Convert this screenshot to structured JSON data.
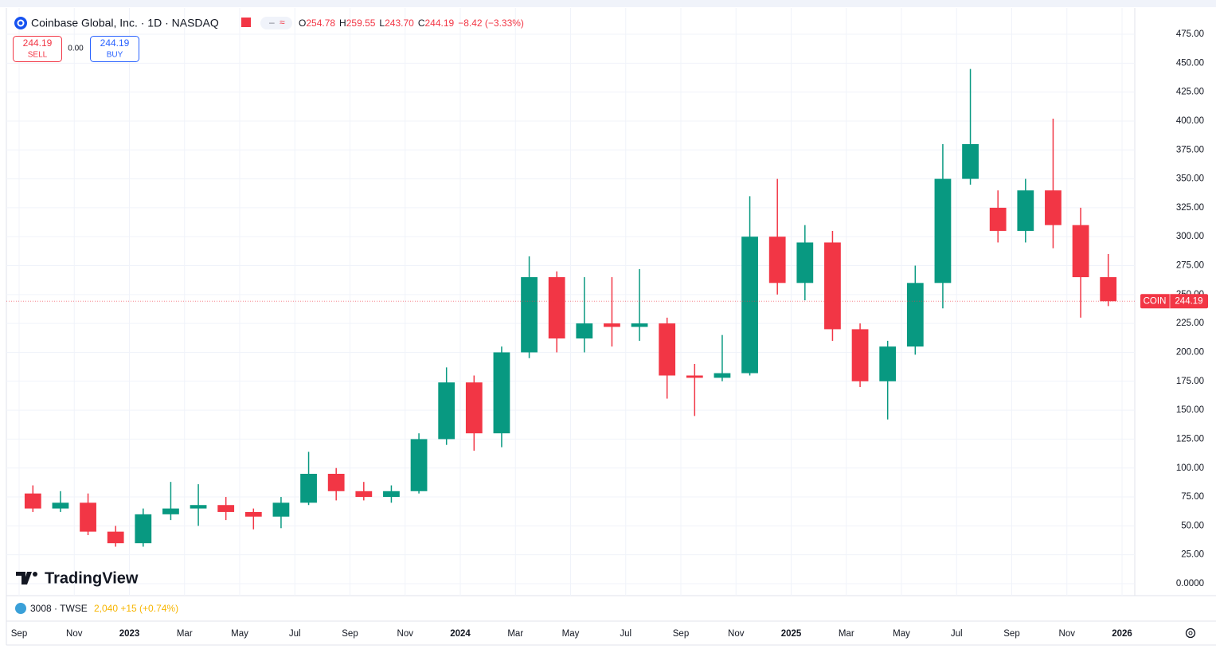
{
  "header": {
    "symbol_name": "Coinbase Global, Inc. · 1D · NASDAQ",
    "ohlc": [
      {
        "key": "O",
        "value": "254.78"
      },
      {
        "key": "H",
        "value": "259.55"
      },
      {
        "key": "L",
        "value": "243.70"
      },
      {
        "key": "C",
        "value": "244.19"
      }
    ],
    "change": "−8.42 (−3.33%)"
  },
  "trade": {
    "sell_price": "244.19",
    "sell_label": "SELL",
    "spread": "0.00",
    "buy_price": "244.19",
    "buy_label": "BUY"
  },
  "watermark": "TradingView",
  "compare": {
    "symbol": "3008 · TWSE",
    "quote": "2,040 +15 (+0.74%)"
  },
  "chart_data": {
    "type": "candlestick",
    "up_color": "#089981",
    "down_color": "#f23645",
    "grid": true,
    "price_tag": {
      "label": "COIN",
      "value": 244.19
    },
    "ylim": [
      0,
      475
    ],
    "yticks": [
      {
        "value": 0,
        "label": "0.0000"
      },
      {
        "value": 25,
        "label": "25.00"
      },
      {
        "value": 50,
        "label": "50.00"
      },
      {
        "value": 75,
        "label": "75.00"
      },
      {
        "value": 100,
        "label": "100.00"
      },
      {
        "value": 125,
        "label": "125.00"
      },
      {
        "value": 150,
        "label": "150.00"
      },
      {
        "value": 175,
        "label": "175.00"
      },
      {
        "value": 200,
        "label": "200.00"
      },
      {
        "value": 225,
        "label": "225.00"
      },
      {
        "value": 250,
        "label": "250.00"
      },
      {
        "value": 275,
        "label": "275.00"
      },
      {
        "value": 300,
        "label": "300.00"
      },
      {
        "value": 325,
        "label": "325.00"
      },
      {
        "value": 350,
        "label": "350.00"
      },
      {
        "value": 375,
        "label": "375.00"
      },
      {
        "value": 400,
        "label": "400.00"
      },
      {
        "value": 425,
        "label": "425.00"
      },
      {
        "value": 450,
        "label": "450.00"
      },
      {
        "value": 475,
        "label": "475.00"
      }
    ],
    "xlim": [
      "2022-09",
      "2026-01"
    ],
    "xticks": [
      {
        "value": "2022-09",
        "label": "Sep"
      },
      {
        "value": "2022-11",
        "label": "Nov"
      },
      {
        "value": "2023-01",
        "label": "2023"
      },
      {
        "value": "2023-03",
        "label": "Mar"
      },
      {
        "value": "2023-05",
        "label": "May"
      },
      {
        "value": "2023-07",
        "label": "Jul"
      },
      {
        "value": "2023-09",
        "label": "Sep"
      },
      {
        "value": "2023-11",
        "label": "Nov"
      },
      {
        "value": "2024-01",
        "label": "2024"
      },
      {
        "value": "2024-03",
        "label": "Mar"
      },
      {
        "value": "2024-05",
        "label": "May"
      },
      {
        "value": "2024-07",
        "label": "Jul"
      },
      {
        "value": "2024-09",
        "label": "Sep"
      },
      {
        "value": "2024-11",
        "label": "Nov"
      },
      {
        "value": "2025-01",
        "label": "2025"
      },
      {
        "value": "2025-03",
        "label": "Mar"
      },
      {
        "value": "2025-05",
        "label": "May"
      },
      {
        "value": "2025-07",
        "label": "Jul"
      },
      {
        "value": "2025-09",
        "label": "Sep"
      },
      {
        "value": "2025-11",
        "label": "Nov"
      },
      {
        "value": "2026-01",
        "label": "2026"
      }
    ],
    "candles": [
      {
        "x": "2022-09",
        "open": 78,
        "high": 85,
        "low": 62,
        "close": 65
      },
      {
        "x": "2022-10",
        "open": 65,
        "high": 80,
        "low": 62,
        "close": 70
      },
      {
        "x": "2022-11",
        "open": 70,
        "high": 78,
        "low": 42,
        "close": 45
      },
      {
        "x": "2022-12",
        "open": 45,
        "high": 50,
        "low": 32,
        "close": 35
      },
      {
        "x": "2023-01",
        "open": 35,
        "high": 65,
        "low": 32,
        "close": 60
      },
      {
        "x": "2023-02",
        "open": 60,
        "high": 88,
        "low": 55,
        "close": 65
      },
      {
        "x": "2023-03",
        "open": 65,
        "high": 86,
        "low": 50,
        "close": 68
      },
      {
        "x": "2023-04",
        "open": 68,
        "high": 75,
        "low": 55,
        "close": 62
      },
      {
        "x": "2023-05",
        "open": 62,
        "high": 65,
        "low": 47,
        "close": 58
      },
      {
        "x": "2023-06",
        "open": 58,
        "high": 75,
        "low": 48,
        "close": 70
      },
      {
        "x": "2023-07",
        "open": 70,
        "high": 114,
        "low": 68,
        "close": 95
      },
      {
        "x": "2023-08",
        "open": 95,
        "high": 100,
        "low": 72,
        "close": 80
      },
      {
        "x": "2023-09",
        "open": 80,
        "high": 88,
        "low": 72,
        "close": 75
      },
      {
        "x": "2023-10",
        "open": 75,
        "high": 85,
        "low": 70,
        "close": 80
      },
      {
        "x": "2023-11",
        "open": 80,
        "high": 130,
        "low": 78,
        "close": 125
      },
      {
        "x": "2023-12",
        "open": 125,
        "high": 187,
        "low": 120,
        "close": 174
      },
      {
        "x": "2024-01",
        "open": 174,
        "high": 180,
        "low": 115,
        "close": 130
      },
      {
        "x": "2024-02",
        "open": 130,
        "high": 205,
        "low": 118,
        "close": 200
      },
      {
        "x": "2024-03",
        "open": 200,
        "high": 283,
        "low": 195,
        "close": 265
      },
      {
        "x": "2024-04",
        "open": 265,
        "high": 270,
        "low": 200,
        "close": 212
      },
      {
        "x": "2024-05",
        "open": 212,
        "high": 265,
        "low": 200,
        "close": 225
      },
      {
        "x": "2024-06",
        "open": 225,
        "high": 265,
        "low": 205,
        "close": 222
      },
      {
        "x": "2024-07",
        "open": 222,
        "high": 272,
        "low": 210,
        "close": 225
      },
      {
        "x": "2024-08",
        "open": 225,
        "high": 230,
        "low": 160,
        "close": 180
      },
      {
        "x": "2024-09",
        "open": 180,
        "high": 190,
        "low": 145,
        "close": 178
      },
      {
        "x": "2024-10",
        "open": 178,
        "high": 215,
        "low": 175,
        "close": 182
      },
      {
        "x": "2024-11",
        "open": 182,
        "high": 335,
        "low": 180,
        "close": 300
      },
      {
        "x": "2024-12",
        "open": 300,
        "high": 350,
        "low": 250,
        "close": 260
      },
      {
        "x": "2025-01",
        "open": 260,
        "high": 310,
        "low": 245,
        "close": 295
      },
      {
        "x": "2025-02",
        "open": 295,
        "high": 305,
        "low": 210,
        "close": 220
      },
      {
        "x": "2025-03",
        "open": 220,
        "high": 225,
        "low": 170,
        "close": 175
      },
      {
        "x": "2025-04",
        "open": 175,
        "high": 210,
        "low": 142,
        "close": 205
      },
      {
        "x": "2025-05",
        "open": 205,
        "high": 275,
        "low": 198,
        "close": 260
      },
      {
        "x": "2025-06",
        "open": 260,
        "high": 380,
        "low": 238,
        "close": 350
      },
      {
        "x": "2025-07",
        "open": 350,
        "high": 445,
        "low": 345,
        "close": 380
      },
      {
        "x": "2025-08",
        "open": 325,
        "high": 340,
        "low": 295,
        "close": 305
      },
      {
        "x": "2025-09",
        "open": 305,
        "high": 350,
        "low": 295,
        "close": 340
      },
      {
        "x": "2025-10",
        "open": 340,
        "high": 402,
        "low": 290,
        "close": 310
      },
      {
        "x": "2025-11",
        "open": 310,
        "high": 325,
        "low": 230,
        "close": 265
      },
      {
        "x": "2025-12",
        "open": 265,
        "high": 285,
        "low": 240,
        "close": 244.19
      }
    ]
  }
}
